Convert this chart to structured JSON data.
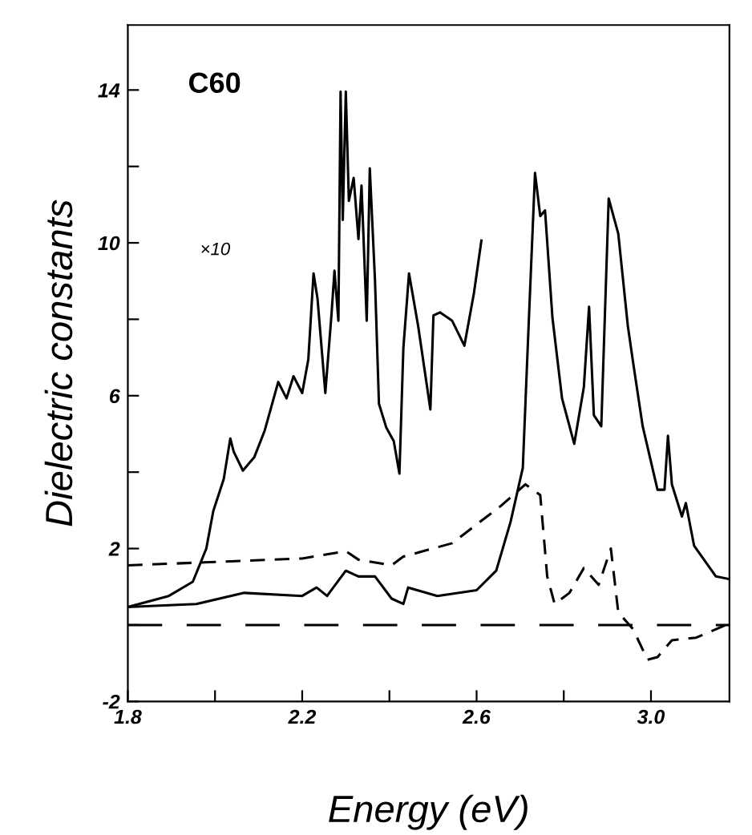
{
  "chart_data": {
    "type": "line",
    "xlabel": "Energy (eV)",
    "ylabel": "Dielectric constants",
    "annotations": [
      "C60",
      "×10"
    ],
    "xlim": [
      1.8,
      3.18
    ],
    "ylim": [
      -2,
      15.7
    ],
    "xticks": [
      1.8,
      {
        "value": 2.0,
        "label": null
      },
      2.2,
      {
        "value": 2.4,
        "label": null
      },
      2.6,
      {
        "value": 2.8,
        "label": null
      },
      {
        "value": 3.0,
        "label": "3.0"
      }
    ],
    "yticks": [
      -2,
      {
        "value": 0,
        "label": null
      },
      2,
      {
        "value": 4,
        "label": null
      },
      6,
      {
        "value": 8,
        "label": null
      },
      10,
      {
        "value": 12,
        "label": null
      },
      14
    ],
    "grid": false,
    "marker": "none",
    "ref_lines": [
      {
        "axis": "y",
        "value": 0,
        "label": null,
        "color": "#000000",
        "line_style": "dashed"
      }
    ],
    "series": [
      {
        "color": "#000000",
        "line_style": "solid",
        "x": [
          1.8,
          1.894,
          1.949,
          1.98,
          1.996,
          2.02,
          2.035,
          2.043,
          2.064,
          2.09,
          2.114,
          2.145,
          2.164,
          2.18,
          2.2,
          2.214,
          2.226,
          2.235,
          2.253,
          2.267,
          2.274,
          2.283,
          2.288,
          2.293,
          2.3,
          2.307,
          2.318,
          2.329,
          2.336,
          2.348,
          2.355,
          2.367,
          2.376,
          2.393,
          2.41,
          2.423,
          2.432,
          2.445,
          2.466,
          2.494,
          2.501,
          2.516,
          2.544,
          2.572,
          2.594,
          2.611
        ],
        "values": [
          0.47,
          0.76,
          1.13,
          2.0,
          2.98,
          3.82,
          4.88,
          4.53,
          4.04,
          4.39,
          5.09,
          6.36,
          5.93,
          6.51,
          6.07,
          6.95,
          9.2,
          8.55,
          6.07,
          8.1,
          9.27,
          7.96,
          13.96,
          10.6,
          13.96,
          11.1,
          11.7,
          10.1,
          11.5,
          7.96,
          11.95,
          9.0,
          5.79,
          5.16,
          4.81,
          3.96,
          7.24,
          9.2,
          7.82,
          5.64,
          8.1,
          8.18,
          7.96,
          7.31,
          8.69,
          10.06
        ]
      },
      {
        "color": "#000000",
        "line_style": "dashed",
        "x": [
          1.8,
          2.2,
          2.3,
          2.329,
          2.405,
          2.432,
          2.544,
          2.656,
          2.712,
          2.746,
          2.762,
          2.779,
          2.813,
          2.846,
          2.88,
          2.908,
          2.925,
          2.959,
          2.992,
          3.015,
          3.048,
          3.104,
          3.18
        ],
        "values": [
          1.56,
          1.74,
          1.93,
          1.71,
          1.56,
          1.79,
          2.14,
          3.12,
          3.68,
          3.4,
          1.27,
          0.55,
          0.84,
          1.49,
          1.05,
          2.0,
          0.33,
          -0.11,
          -0.91,
          -0.84,
          -0.4,
          -0.33,
          0.04
        ]
      },
      {
        "color": "#000000",
        "line_style": "solid",
        "x": [
          1.8,
          1.957,
          2.067,
          2.2,
          2.233,
          2.257,
          2.3,
          2.329,
          2.367,
          2.405,
          2.432,
          2.443,
          2.51,
          2.6,
          2.645,
          2.678,
          2.706,
          2.718,
          2.734,
          2.746,
          2.757,
          2.774,
          2.796,
          2.824,
          2.846,
          2.858,
          2.869,
          2.886,
          2.903,
          2.925,
          2.947,
          2.959,
          2.981,
          3.015,
          3.031,
          3.039,
          3.048,
          3.071,
          3.08,
          3.099,
          3.149,
          3.18
        ],
        "values": [
          0.47,
          0.55,
          0.84,
          0.76,
          0.98,
          0.76,
          1.42,
          1.27,
          1.27,
          0.69,
          0.55,
          0.98,
          0.76,
          0.91,
          1.42,
          2.7,
          4.11,
          7.47,
          11.83,
          10.7,
          10.85,
          8.04,
          5.93,
          4.74,
          6.22,
          8.33,
          5.49,
          5.2,
          11.16,
          10.24,
          7.82,
          6.87,
          5.2,
          3.54,
          3.54,
          4.95,
          3.68,
          2.84,
          3.19,
          2.07,
          1.27,
          1.2
        ]
      }
    ]
  }
}
